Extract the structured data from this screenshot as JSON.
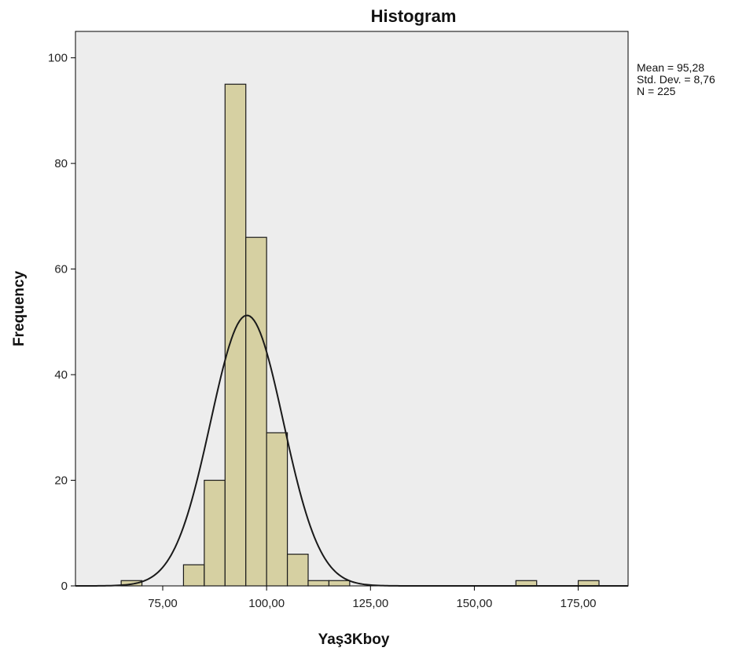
{
  "chart_data": {
    "type": "bar",
    "title": "Histogram",
    "xlabel": "Yaş3Kboy",
    "ylabel": "Frequency",
    "xlim": [
      54,
      187
    ],
    "ylim": [
      0,
      105
    ],
    "x_ticks": [
      75,
      100,
      125,
      150,
      175
    ],
    "x_tick_labels": [
      "75,00",
      "100,00",
      "125,00",
      "150,00",
      "175,00"
    ],
    "y_ticks": [
      0,
      20,
      40,
      60,
      80,
      100
    ],
    "y_tick_labels": [
      "0",
      "20",
      "40",
      "60",
      "80",
      "100"
    ],
    "bin_width": 5,
    "bins": [
      {
        "start": 65,
        "end": 70,
        "count": 1
      },
      {
        "start": 80,
        "end": 85,
        "count": 4
      },
      {
        "start": 85,
        "end": 90,
        "count": 20
      },
      {
        "start": 90,
        "end": 95,
        "count": 95
      },
      {
        "start": 95,
        "end": 100,
        "count": 66
      },
      {
        "start": 100,
        "end": 105,
        "count": 29
      },
      {
        "start": 105,
        "end": 110,
        "count": 6
      },
      {
        "start": 110,
        "end": 115,
        "count": 1
      },
      {
        "start": 115,
        "end": 120,
        "count": 1
      },
      {
        "start": 160,
        "end": 165,
        "count": 1
      },
      {
        "start": 175,
        "end": 180,
        "count": 1
      }
    ],
    "normal_curve": {
      "mean": 95.28,
      "std": 8.76,
      "n": 225
    },
    "stats_lines": [
      "Mean = 95,28",
      "Std. Dev. = 8,76",
      "N = 225"
    ],
    "grid": false,
    "colors": {
      "bar_fill": "#d6d0a2",
      "bar_stroke": "#1a1a1a",
      "plot_bg": "#ededed",
      "curve": "#1a1a1a"
    }
  }
}
